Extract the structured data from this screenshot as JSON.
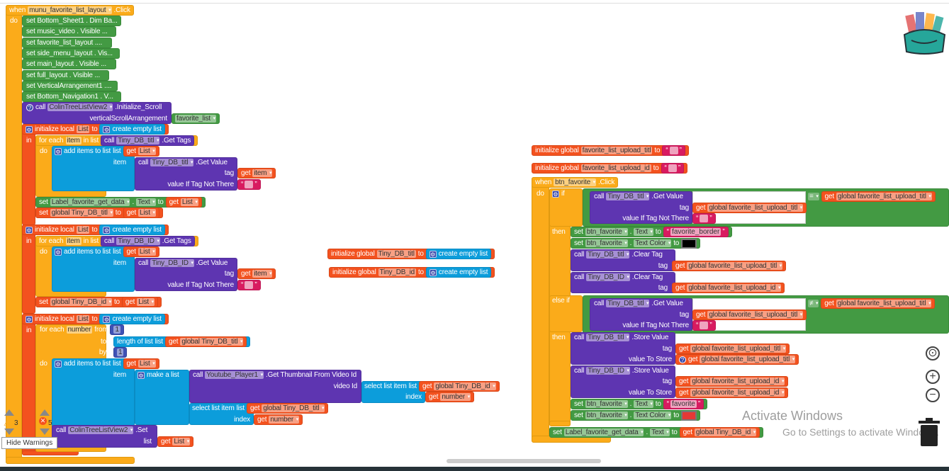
{
  "kw": {
    "when": "when",
    "do": "do",
    "set": "set",
    "call": "call",
    "get": "get",
    "to": "to",
    "in": "in",
    "then": "then",
    "if": "if",
    "else_if": "else if",
    "for_each": "for each",
    "in_list": "in list",
    "from": "from",
    "by": "by",
    "item": "item",
    "tag": "tag",
    "list": "list",
    "index": "index",
    "value_if": "value If Tag Not There",
    "value_store": "value To Store",
    "init_local": "initialize local",
    "init_global": "initialize global",
    "create_empty": "create empty list",
    "add_items": "add items to list",
    "make_list": "make a list",
    "select_item": "select list item",
    "length": "length of list",
    "video_id": "video Id",
    "dot": ".",
    "eq": "=",
    "neq": "≠",
    "click": ".Click",
    "get_tags": ".Get Tags",
    "get_value": ".Get Value",
    "clear_tag": ".Clear Tag",
    "store_value": ".Store Value",
    "set_method": ".Set"
  },
  "names": {
    "List": "List",
    "item": "item",
    "number": "number",
    "one": "1",
    "tiny_titl": "Tiny_DB_titl",
    "tiny_id": "Tiny_DB_ID",
    "g_titl": "global Tiny_DB_titl",
    "g_id": "global Tiny_DB_id",
    "v_titl": "Tiny_DB_titl",
    "v_id": "Tiny_DB_id",
    "label_fav": "Label_favorite_get_data",
    "text": "Text",
    "text_color": "Text Color",
    "colin": "ColinTreeListView2",
    "youtube": "Youtube_Player1",
    "thumb": ".Get Thumbnail From Video Id",
    "btn_fav": "btn_favorite",
    "up_titl": "favorite_list_upload_titl",
    "up_id": "favorite_list_upload_id",
    "g_up_titl": "global favorite_list_upload_titl",
    "g_up_id": "global favorite_list_upload_id",
    "empty": "",
    "fav_border": "favorite_border",
    "favorite": "favorite"
  },
  "menu_event": {
    "component": "munu_favorite_list_layout",
    "setters": [
      "set  Bottom_Sheet1 . Dim Ba...",
      "set  music_video . Visible ...",
      "set  favorite_list_layout ....",
      "set  side_menu_layout . Vis...",
      "set  main_layout . Visible ...",
      "set  full_layout . Visible ...",
      "set  VerticalArrangement1 ....",
      "set  Bottom_Navigation1 . V..."
    ],
    "init_scroll": {
      "method": ".Initialize_Scroll",
      "arg": "verticalScrollArrangement",
      "value": "favorite_list"
    }
  },
  "colors": {
    "control": "#fbab1a",
    "component": "#439a43",
    "tinydb": "#5e35b1",
    "variable": "#f3521f",
    "list": "#0c9ddb",
    "math": "#3f51b5",
    "text": "#d81b60",
    "swatch_black": "#000000",
    "swatch_red": "#e53935"
  },
  "icons": [
    "mutator-gear-icon",
    "help-question-icon",
    "backpack-icon",
    "target-icon",
    "zoom-in-icon",
    "zoom-out-icon",
    "trash-icon",
    "warning-icon",
    "error-icon"
  ],
  "warnings": {
    "warning_count": "3",
    "error_count": "5",
    "hide_label": "Hide Warnings"
  },
  "watermark": {
    "title": "Activate Windows",
    "subtitle": "Go to Settings to activate Windows."
  }
}
